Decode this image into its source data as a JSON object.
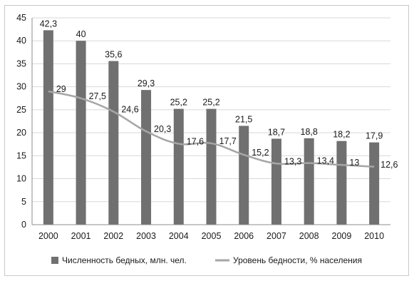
{
  "chart_data": {
    "type": "bar",
    "categories": [
      "2000",
      "2001",
      "2002",
      "2003",
      "2004",
      "2005",
      "2006",
      "2007",
      "2008",
      "2009",
      "2010"
    ],
    "series": [
      {
        "name": "Численность бедных, млн. чел.",
        "kind": "bar",
        "color": "#707070",
        "values": [
          42.3,
          40,
          35.6,
          29.3,
          25.2,
          25.2,
          21.5,
          18.7,
          18.8,
          18.2,
          17.9
        ],
        "labels": [
          "42,3",
          "40",
          "35,6",
          "29,3",
          "25,2",
          "25,2",
          "21,5",
          "18,7",
          "18,8",
          "18,2",
          "17,9"
        ]
      },
      {
        "name": "Уровень бедности, % населения",
        "kind": "line",
        "color": "#a6a6a6",
        "values": [
          29,
          27.5,
          24.6,
          20.3,
          17.6,
          17.7,
          15.2,
          13.3,
          13.4,
          13,
          12.6
        ],
        "labels": [
          "29",
          "27,5",
          "24,6",
          "20,3",
          "17,6",
          "17,7",
          "15,2",
          "13,3",
          "13,4",
          "13",
          "12,6"
        ]
      }
    ],
    "yticks": [
      "0",
      "5",
      "10",
      "15",
      "20",
      "25",
      "30",
      "35",
      "40",
      "45"
    ],
    "ylim": [
      0,
      45
    ],
    "grid": true,
    "legend": "bottom",
    "title": "",
    "xlabel": "",
    "ylabel": ""
  }
}
